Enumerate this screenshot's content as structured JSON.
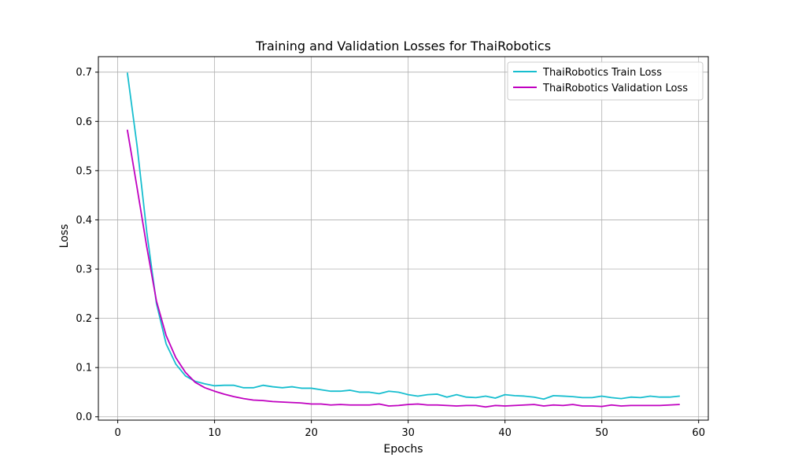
{
  "chart_data": {
    "type": "line",
    "title": "Training and Validation Losses for ThaiRobotics",
    "xlabel": "Epochs",
    "ylabel": "Loss",
    "xlim": [
      -2,
      61
    ],
    "ylim": [
      -0.0068,
      0.7315
    ],
    "xticks": [
      0,
      10,
      20,
      30,
      40,
      50,
      60
    ],
    "xtick_labels": [
      "0",
      "10",
      "20",
      "30",
      "40",
      "50",
      "60"
    ],
    "yticks": [
      0.0,
      0.1,
      0.2,
      0.3,
      0.4,
      0.5,
      0.6,
      0.7
    ],
    "ytick_labels": [
      "0.0",
      "0.1",
      "0.2",
      "0.3",
      "0.4",
      "0.5",
      "0.6",
      "0.7"
    ],
    "grid": true,
    "legend_position": "top-right",
    "x": [
      1,
      2,
      3,
      4,
      5,
      6,
      7,
      8,
      9,
      10,
      11,
      12,
      13,
      14,
      15,
      16,
      17,
      18,
      19,
      20,
      21,
      22,
      23,
      24,
      25,
      26,
      27,
      28,
      29,
      30,
      31,
      32,
      33,
      34,
      35,
      36,
      37,
      38,
      39,
      40,
      41,
      42,
      43,
      44,
      45,
      46,
      47,
      48,
      49,
      50,
      51,
      52,
      53,
      54,
      55,
      56,
      57,
      58
    ],
    "series": [
      {
        "name": "ThaiRobotics Train Loss",
        "color": "#17becf",
        "values": [
          0.698,
          0.55,
          0.375,
          0.23,
          0.148,
          0.107,
          0.083,
          0.072,
          0.067,
          0.063,
          0.064,
          0.064,
          0.059,
          0.059,
          0.064,
          0.061,
          0.059,
          0.061,
          0.058,
          0.058,
          0.055,
          0.052,
          0.052,
          0.054,
          0.05,
          0.05,
          0.047,
          0.052,
          0.05,
          0.045,
          0.042,
          0.045,
          0.046,
          0.04,
          0.045,
          0.04,
          0.039,
          0.042,
          0.038,
          0.045,
          0.043,
          0.042,
          0.04,
          0.036,
          0.043,
          0.042,
          0.041,
          0.039,
          0.039,
          0.042,
          0.039,
          0.037,
          0.04,
          0.039,
          0.042,
          0.04,
          0.04,
          0.042
        ]
      },
      {
        "name": "ThaiRobotics Validation Loss",
        "color": "#c000c0",
        "values": [
          0.582,
          0.465,
          0.345,
          0.235,
          0.165,
          0.12,
          0.09,
          0.07,
          0.059,
          0.052,
          0.046,
          0.041,
          0.037,
          0.034,
          0.033,
          0.031,
          0.03,
          0.029,
          0.028,
          0.026,
          0.026,
          0.024,
          0.025,
          0.024,
          0.024,
          0.024,
          0.026,
          0.022,
          0.023,
          0.025,
          0.026,
          0.024,
          0.024,
          0.023,
          0.022,
          0.023,
          0.023,
          0.02,
          0.023,
          0.022,
          0.023,
          0.024,
          0.025,
          0.022,
          0.024,
          0.023,
          0.025,
          0.022,
          0.022,
          0.021,
          0.024,
          0.022,
          0.023,
          0.023,
          0.023,
          0.023,
          0.024,
          0.025
        ]
      }
    ]
  }
}
